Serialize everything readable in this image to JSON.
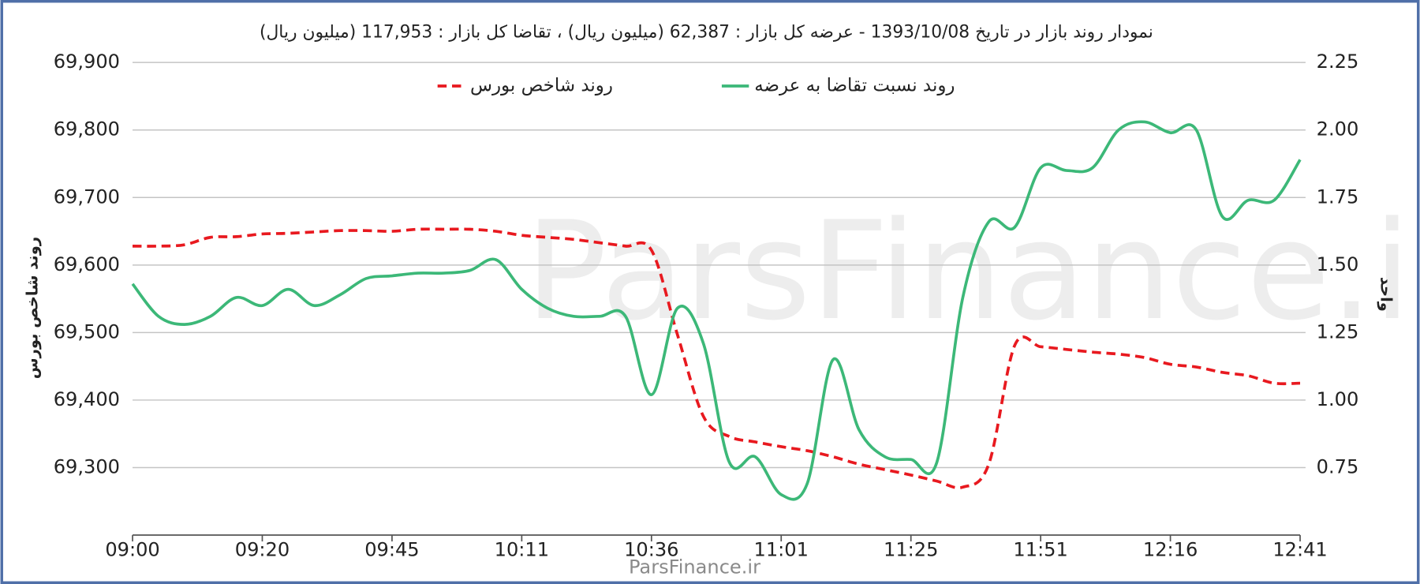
{
  "chart_data": {
    "type": "line",
    "title": "نمودار روند بازار در تاریخ 1393/10/08 - عرضه کل بازار : 62,387 (میلیون ریال) ، تقاضا کل بازار : 117,953 (میلیون ریال)",
    "ylabel": "روند شاخص بورس",
    "y2label": "واحد",
    "watermark": "ParsFinance.ir",
    "footer": "ParsFinance.ir",
    "legend": "top",
    "grid": true,
    "categories": [
      "09:00",
      null,
      null,
      null,
      null,
      "09:20",
      null,
      null,
      null,
      null,
      "09:45",
      null,
      null,
      null,
      null,
      "10:11",
      null,
      null,
      null,
      null,
      "10:36",
      null,
      null,
      null,
      null,
      "11:01",
      null,
      null,
      null,
      null,
      "11:25",
      null,
      null,
      null,
      null,
      "11:51",
      null,
      null,
      null,
      null,
      "12:16",
      null,
      null,
      null,
      null,
      "12:41"
    ],
    "ylim": [
      69200,
      69900
    ],
    "yticks": [
      {
        "value": 69300,
        "label": "69,300"
      },
      {
        "value": 69400,
        "label": "69,400"
      },
      {
        "value": 69500,
        "label": "69,500"
      },
      {
        "value": 69600,
        "label": "69,600"
      },
      {
        "value": 69700,
        "label": "69,700"
      },
      {
        "value": 69800,
        "label": "69,800"
      },
      {
        "value": 69900,
        "label": "69,900"
      }
    ],
    "y2lim": [
      0.5,
      2.25
    ],
    "y2ticks": [
      0.75,
      {
        "value": 1,
        "label": "1.00"
      },
      {
        "value": 1.25,
        "label": "1.25"
      },
      {
        "value": 1.5,
        "label": "1.50"
      },
      {
        "value": 1.75,
        "label": "1.75"
      },
      {
        "value": 2,
        "label": "2.00"
      },
      2.25
    ],
    "series": [
      {
        "name": "روند شاخص بورس",
        "color": "#e8191f",
        "dashed": true,
        "values": [
          69628,
          69628,
          69630,
          69641,
          69642,
          69646,
          69647,
          69649,
          69651,
          69651,
          69650,
          69653,
          69653,
          69653,
          69650,
          69644,
          69641,
          69638,
          69633,
          69628,
          69622,
          69497,
          69376,
          69346,
          69338,
          69331,
          69325,
          69316,
          69305,
          69297,
          69289,
          69280,
          69271,
          69305,
          69481,
          69479,
          69475,
          69471,
          69468,
          69463,
          69453,
          69449,
          69441,
          69436,
          69425,
          69425
        ]
      },
      {
        "name": "روند نسبت تقاضا به عرضه",
        "color": "#3cb878",
        "dashed": false,
        "axis": "y2",
        "values": [
          1.43,
          1.31,
          1.28,
          1.31,
          1.38,
          1.35,
          1.41,
          1.35,
          1.39,
          1.45,
          1.46,
          1.47,
          1.47,
          1.48,
          1.52,
          1.41,
          1.34,
          1.31,
          1.31,
          1.31,
          1.02,
          1.34,
          1.21,
          0.77,
          0.79,
          0.65,
          0.69,
          1.15,
          0.89,
          0.79,
          0.78,
          0.77,
          1.38,
          1.66,
          1.64,
          1.86,
          1.85,
          1.86,
          2.0,
          2.03,
          1.99,
          2.0,
          1.68,
          1.74,
          1.74,
          1.89
        ]
      }
    ]
  }
}
